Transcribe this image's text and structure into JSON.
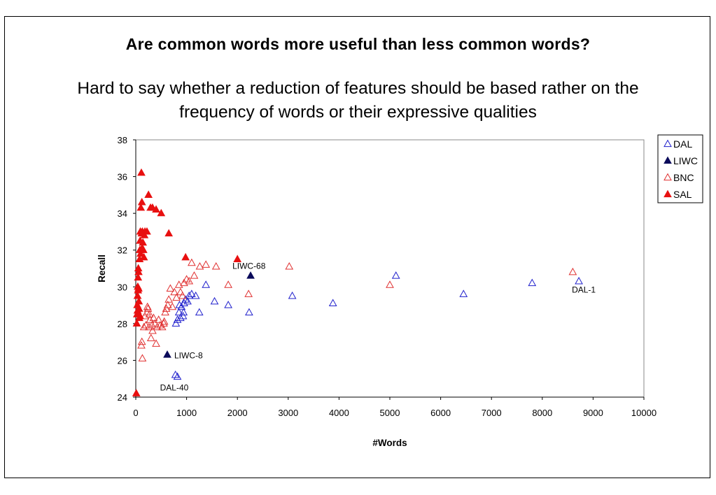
{
  "chart_data": {
    "type": "scatter",
    "title": "Are common words more useful than less common words?",
    "subtitle": "Hard to say whether a reduction of features should be based rather on the frequency of words or their expressive qualities",
    "xlabel": "#Words",
    "ylabel": "Recall",
    "xlim": [
      0,
      10000
    ],
    "ylim": [
      24,
      38
    ],
    "xticks": [
      0,
      1000,
      2000,
      3000,
      4000,
      5000,
      6000,
      7000,
      8000,
      9000,
      10000
    ],
    "yticks": [
      24,
      26,
      28,
      30,
      32,
      34,
      36,
      38
    ],
    "grid": false,
    "legend_position": "right",
    "series": [
      {
        "name": "DAL",
        "color": "#1f1fcc",
        "marker": "triangle-open",
        "points": [
          [
            780,
            25.2
          ],
          [
            820,
            25.1
          ],
          [
            790,
            28.0
          ],
          [
            820,
            28.2
          ],
          [
            850,
            28.6
          ],
          [
            880,
            28.3
          ],
          [
            900,
            28.9
          ],
          [
            930,
            28.4
          ],
          [
            950,
            29.1
          ],
          [
            980,
            29.3
          ],
          [
            1020,
            29.2
          ],
          [
            1050,
            29.5
          ],
          [
            1100,
            29.6
          ],
          [
            1180,
            29.5
          ],
          [
            1250,
            28.6
          ],
          [
            1380,
            30.1
          ],
          [
            1550,
            29.2
          ],
          [
            1820,
            29.0
          ],
          [
            2230,
            28.6
          ],
          [
            3080,
            29.5
          ],
          [
            3880,
            29.1
          ],
          [
            5120,
            30.6
          ],
          [
            6450,
            29.6
          ],
          [
            7800,
            30.2
          ],
          [
            8720,
            30.3
          ],
          [
            860,
            29.0
          ],
          [
            940,
            28.6
          ]
        ]
      },
      {
        "name": "LIWC",
        "color": "#0a0a5a",
        "marker": "triangle-filled",
        "points": [
          [
            620,
            26.3
          ],
          [
            2260,
            30.6
          ]
        ]
      },
      {
        "name": "BNC",
        "color": "#e03030",
        "marker": "triangle-open",
        "points": [
          [
            110,
            26.8
          ],
          [
            120,
            27.0
          ],
          [
            130,
            26.1
          ],
          [
            160,
            27.8
          ],
          [
            180,
            28.4
          ],
          [
            200,
            27.9
          ],
          [
            220,
            28.6
          ],
          [
            240,
            28.8
          ],
          [
            260,
            27.8
          ],
          [
            280,
            28.2
          ],
          [
            300,
            27.2
          ],
          [
            320,
            27.9
          ],
          [
            350,
            28.3
          ],
          [
            380,
            28.0
          ],
          [
            400,
            26.9
          ],
          [
            420,
            27.8
          ],
          [
            450,
            28.2
          ],
          [
            480,
            27.9
          ],
          [
            520,
            27.8
          ],
          [
            550,
            28.0
          ],
          [
            580,
            28.6
          ],
          [
            600,
            28.8
          ],
          [
            630,
            29.0
          ],
          [
            650,
            29.3
          ],
          [
            680,
            29.9
          ],
          [
            720,
            28.9
          ],
          [
            760,
            29.7
          ],
          [
            800,
            29.4
          ],
          [
            850,
            30.1
          ],
          [
            880,
            29.7
          ],
          [
            920,
            29.5
          ],
          [
            950,
            30.2
          ],
          [
            1000,
            30.4
          ],
          [
            1050,
            30.3
          ],
          [
            1100,
            31.3
          ],
          [
            1150,
            30.6
          ],
          [
            1260,
            31.1
          ],
          [
            1380,
            31.2
          ],
          [
            1580,
            31.1
          ],
          [
            1820,
            30.1
          ],
          [
            2220,
            29.6
          ],
          [
            3020,
            31.1
          ],
          [
            5000,
            30.1
          ],
          [
            8600,
            30.8
          ],
          [
            230,
            28.9
          ],
          [
            270,
            28.5
          ],
          [
            330,
            27.6
          ],
          [
            560,
            28.1
          ]
        ]
      },
      {
        "name": "SAL",
        "color": "#e81010",
        "marker": "triangle-filled",
        "points": [
          [
            10,
            24.2
          ],
          [
            20,
            28.0
          ],
          [
            25,
            28.5
          ],
          [
            30,
            29.0
          ],
          [
            35,
            29.5
          ],
          [
            40,
            30.0
          ],
          [
            45,
            30.5
          ],
          [
            50,
            31.0
          ],
          [
            55,
            30.8
          ],
          [
            60,
            29.2
          ],
          [
            65,
            28.8
          ],
          [
            70,
            28.3
          ],
          [
            75,
            31.5
          ],
          [
            80,
            32.0
          ],
          [
            85,
            32.5
          ],
          [
            90,
            33.0
          ],
          [
            95,
            31.8
          ],
          [
            100,
            34.3
          ],
          [
            110,
            36.2
          ],
          [
            120,
            34.6
          ],
          [
            130,
            33.0
          ],
          [
            140,
            32.4
          ],
          [
            150,
            32.0
          ],
          [
            160,
            31.6
          ],
          [
            170,
            32.8
          ],
          [
            180,
            33.0
          ],
          [
            220,
            33.0
          ],
          [
            250,
            35.0
          ],
          [
            290,
            34.3
          ],
          [
            330,
            34.3
          ],
          [
            400,
            34.2
          ],
          [
            500,
            34.0
          ],
          [
            650,
            32.9
          ],
          [
            980,
            31.6
          ],
          [
            2000,
            31.5
          ],
          [
            45,
            29.8
          ],
          [
            55,
            29.9
          ],
          [
            35,
            28.7
          ],
          [
            85,
            28.4
          ],
          [
            115,
            32.9
          ],
          [
            125,
            32.1
          ]
        ]
      }
    ],
    "annotations": [
      {
        "text": "LIWC-68",
        "x": 2260,
        "y": 30.6
      },
      {
        "text": "DAL-1",
        "x": 8720,
        "y": 30.3
      },
      {
        "text": "LIWC-8",
        "x": 620,
        "y": 26.3
      },
      {
        "text": "DAL-40",
        "x": 780,
        "y": 25.2
      }
    ]
  }
}
